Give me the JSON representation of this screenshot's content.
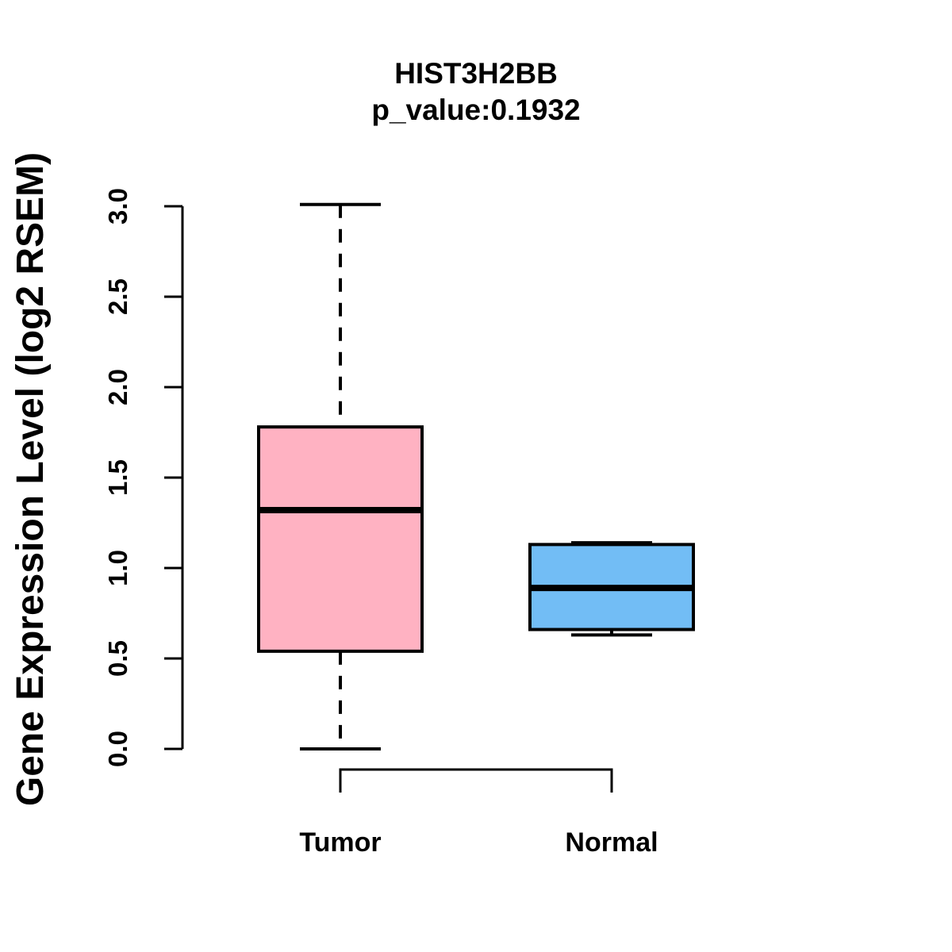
{
  "page": {
    "background_color": "#FFFFFF",
    "foreground_color": "#000000"
  },
  "chart_data": {
    "type": "boxplot",
    "title": "HIST3H2BB",
    "subtitle": "p_value:0.1932",
    "ylabel": "Gene Expression Level (log2 RSEM)",
    "xlabel": "",
    "ylim": [
      0.0,
      3.0
    ],
    "ytick_labels": [
      "0.0",
      "0.5",
      "1.0",
      "1.5",
      "2.0",
      "2.5",
      "3.0"
    ],
    "grid": false,
    "legend": false,
    "categories": [
      "Tumor",
      "Normal"
    ],
    "series": [
      {
        "name": "Tumor",
        "fill_color": "#FFB2C2",
        "min": 0.0,
        "q1": 0.54,
        "median": 1.32,
        "q3": 1.78,
        "max": 3.01
      },
      {
        "name": "Normal",
        "fill_color": "#72BDF5",
        "min": 0.63,
        "q1": 0.66,
        "median": 0.89,
        "q3": 1.13,
        "max": 1.14
      }
    ],
    "stroke_color": "#000000"
  }
}
